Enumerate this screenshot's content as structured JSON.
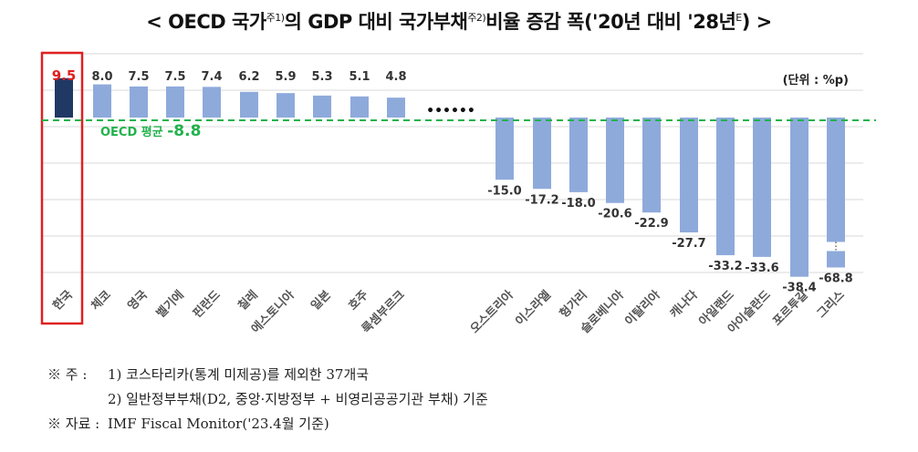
{
  "title": {
    "part1": "< OECD 국가",
    "sup1": "주1)",
    "part2": "의 GDP 대비 국가부채",
    "sup2": "주2)",
    "part3": "비율 증감 폭('20년 대비 '28년",
    "sup3": "E",
    "part4": ") >"
  },
  "chart_data": {
    "type": "bar",
    "unit_label": "(단위 : %p)",
    "ellipsis": "••••••",
    "average": {
      "label": "OECD 평균",
      "value": -8.8,
      "color": "#22b24c"
    },
    "highlight_color": "#1f3864",
    "bar_color": "#8eaadb",
    "highlight_label_color": "#e02020",
    "categories": [
      "한국",
      "체코",
      "영국",
      "벨기에",
      "핀란드",
      "칠레",
      "에스토니아",
      "일본",
      "호주",
      "룩셈부르크",
      "오스트리아",
      "이스라엘",
      "헝가리",
      "슬로베니아",
      "이탈리아",
      "캐나다",
      "아일랜드",
      "아이슬란드",
      "포르투갈",
      "그리스"
    ],
    "values": [
      9.5,
      8.0,
      7.5,
      7.5,
      7.4,
      6.2,
      5.9,
      5.3,
      5.1,
      4.8,
      -15.0,
      -17.2,
      -18.0,
      -20.6,
      -22.9,
      -27.7,
      -33.2,
      -33.6,
      -38.4,
      -68.8
    ],
    "value_labels": [
      "9.5",
      "8.0",
      "7.5",
      "7.5",
      "7.4",
      "6.2",
      "5.9",
      "5.3",
      "5.1",
      "4.8",
      "-15.0",
      "-17.2",
      "-18.0",
      "-20.6",
      "-22.9",
      "-27.7",
      "-33.2",
      "-33.6",
      "-38.4",
      "-68.8"
    ],
    "broken_axis_category": "그리스",
    "highlight_category": "한국",
    "grid": true
  },
  "notes": {
    "line1_label": "※ 주 :",
    "line1_text": "1) 코스타리카(통계 미제공)를 제외한 37개국",
    "line2_text": "2) 일반정부부채(D2, 중앙·지방정부 + 비영리공공기관 부채) 기준",
    "line3_label": "※ 자료 :",
    "line3_text": "IMF Fiscal Monitor('23.4월 기준)"
  }
}
